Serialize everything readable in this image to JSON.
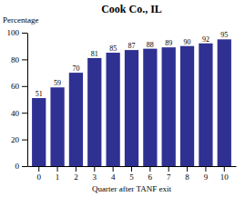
{
  "chart_data": {
    "type": "bar",
    "title": "Cook Co., IL",
    "x_label": "Quarter after TANF exit",
    "y_label": "Percentage",
    "categories": [
      "0",
      "1",
      "2",
      "3",
      "4",
      "5",
      "6",
      "7",
      "8",
      "9",
      "10"
    ],
    "values": [
      51,
      59,
      70,
      81,
      85,
      87,
      88,
      89,
      90,
      92,
      95
    ],
    "color": "#2E3192",
    "ylim": [
      0,
      100
    ],
    "yticks": [
      0,
      20,
      40,
      60,
      80,
      100
    ],
    "grid": false,
    "data_labels": true
  }
}
